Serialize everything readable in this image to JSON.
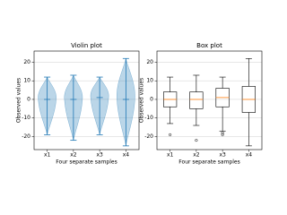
{
  "chart_data": [
    {
      "type": "violin",
      "title": "Violin plot",
      "xlabel": "Four separate samples",
      "ylabel": "Observed values",
      "categories": [
        "x1",
        "x2",
        "x3",
        "x4"
      ],
      "ylim": [
        -27,
        26
      ],
      "yticks": [
        -20,
        -10,
        0,
        10,
        20
      ],
      "grid": true,
      "color": "#1f77b4",
      "stats": [
        {
          "min": -19,
          "median": 0,
          "max": 12
        },
        {
          "min": -22,
          "median": 0,
          "max": 13
        },
        {
          "min": -19,
          "median": 1,
          "max": 12
        },
        {
          "min": -25,
          "median": 0,
          "max": 22
        }
      ]
    },
    {
      "type": "box",
      "title": "Box plot",
      "xlabel": "Four separate samples",
      "ylabel": "Observed values",
      "categories": [
        "x1",
        "x2",
        "x3",
        "x4"
      ],
      "ylim": [
        -27,
        26
      ],
      "yticks": [
        -20,
        -10,
        0,
        10,
        20
      ],
      "grid": true,
      "color": "#000000",
      "median_color": "#ff7f0e",
      "stats": [
        {
          "whislo": -13,
          "q1": -4,
          "med": 0,
          "q3": 4,
          "whishi": 12,
          "fliers": [
            -19
          ]
        },
        {
          "whislo": -14,
          "q1": -5,
          "med": 0,
          "q3": 4,
          "whishi": 13,
          "fliers": [
            -22
          ]
        },
        {
          "whislo": -17,
          "q1": -4,
          "med": 1,
          "q3": 6,
          "whishi": 12,
          "fliers": [
            -18,
            -19
          ]
        },
        {
          "whislo": -25,
          "q1": -7,
          "med": 0,
          "q3": 7,
          "whishi": 22,
          "fliers": []
        }
      ]
    }
  ]
}
